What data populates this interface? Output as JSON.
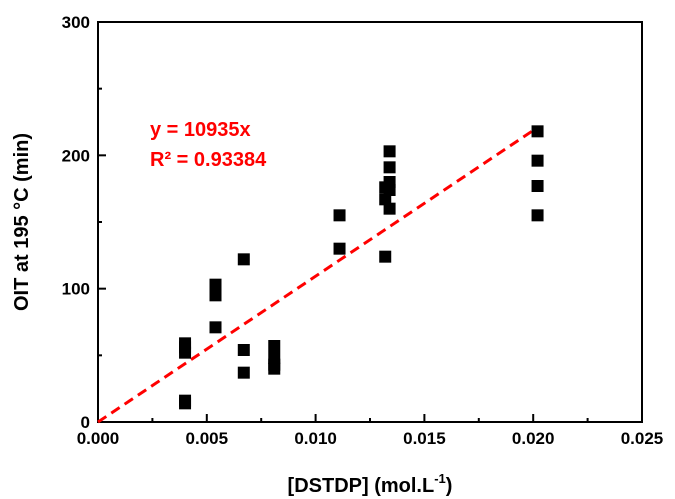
{
  "chart_data": {
    "type": "scatter",
    "xlabel": "[DSTDP] (mol.L",
    "xlabel_sup": "-1",
    "xlabel_close": ")",
    "ylabel": "OIT at 195 °C (min)",
    "xlim": [
      0.0,
      0.025
    ],
    "ylim": [
      0,
      300
    ],
    "x_ticks": [
      0.0,
      0.005,
      0.01,
      0.015,
      0.02,
      0.025
    ],
    "x_tick_labels": [
      "0.000",
      "0.005",
      "0.010",
      "0.015",
      "0.020",
      "0.025"
    ],
    "y_ticks": [
      0,
      100,
      200,
      300
    ],
    "y_tick_labels": [
      "0",
      "100",
      "200",
      "300"
    ],
    "grid": false,
    "series": [
      {
        "marker": "square",
        "color": "#000000",
        "points": [
          [
            0.004,
            59
          ],
          [
            0.004,
            56
          ],
          [
            0.004,
            52
          ],
          [
            0.004,
            16
          ],
          [
            0.004,
            14
          ],
          [
            0.0054,
            103
          ],
          [
            0.0054,
            98
          ],
          [
            0.0054,
            95
          ],
          [
            0.0054,
            71
          ],
          [
            0.0067,
            122
          ],
          [
            0.0067,
            54
          ],
          [
            0.0067,
            37
          ],
          [
            0.0081,
            57
          ],
          [
            0.0081,
            48
          ],
          [
            0.0081,
            43
          ],
          [
            0.0081,
            40
          ],
          [
            0.0111,
            155
          ],
          [
            0.0111,
            130
          ],
          [
            0.0132,
            176
          ],
          [
            0.0132,
            167
          ],
          [
            0.0132,
            124
          ],
          [
            0.0134,
            203
          ],
          [
            0.0134,
            191
          ],
          [
            0.0134,
            180
          ],
          [
            0.0134,
            174
          ],
          [
            0.0134,
            160
          ],
          [
            0.0202,
            218
          ],
          [
            0.0202,
            196
          ],
          [
            0.0202,
            177
          ],
          [
            0.0202,
            155
          ]
        ]
      }
    ],
    "fit_line": {
      "color": "#ff0000",
      "style": "dashed",
      "slope": 10935,
      "x_range": [
        0.0,
        0.0202
      ],
      "equation": "y = 10935x",
      "r_squared": "R² = 0.93384"
    }
  }
}
